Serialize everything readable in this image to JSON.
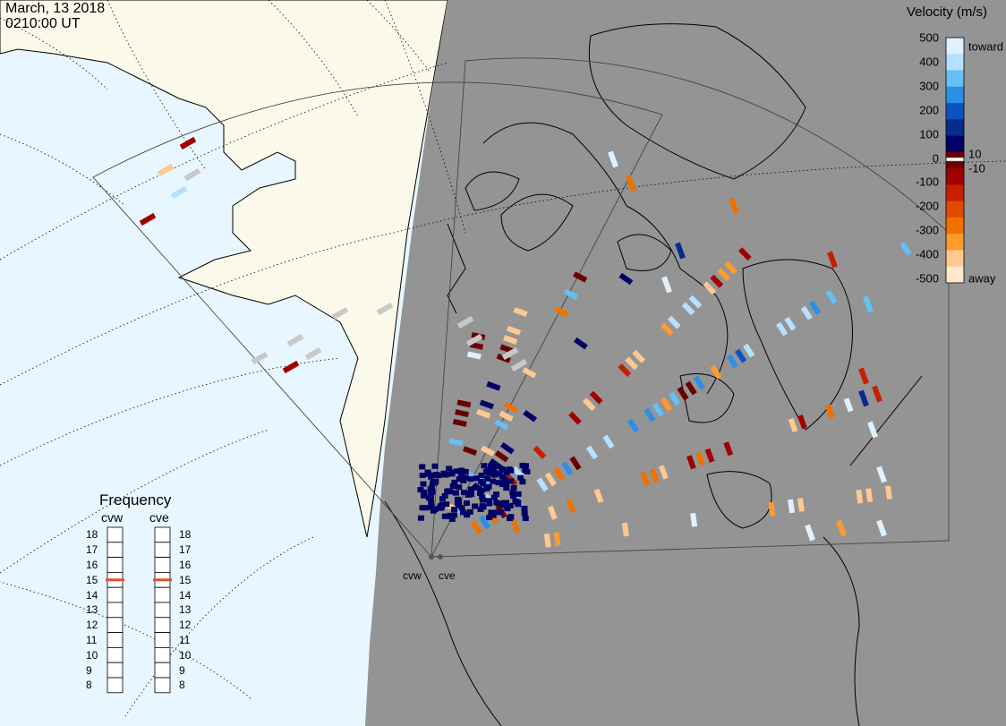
{
  "header": {
    "date": "March, 13 2018",
    "time": "0210:00 UT"
  },
  "velocity_scale": {
    "title": "Velocity (m/s)",
    "ticks": [
      "500",
      "400",
      "300",
      "200",
      "100",
      "0",
      "-100",
      "-200",
      "-300",
      "-400",
      "-500"
    ],
    "toward_label": "toward",
    "away_label": "away",
    "inner_pos": "10",
    "inner_neg": "-10",
    "colors": [
      "#dff1ff",
      "#b6e0ff",
      "#66bff5",
      "#2b8fe6",
      "#0b54c0",
      "#062c8c",
      "#000066",
      "#6a0000",
      "#a00000",
      "#c81e00",
      "#e04b00",
      "#f07000",
      "#ff9a30",
      "#ffc890",
      "#ffe6cc"
    ]
  },
  "frequency": {
    "title": "Frequency",
    "radars": [
      {
        "name": "cvw",
        "freq_mhz": 15
      },
      {
        "name": "cve",
        "freq_mhz": 15
      }
    ],
    "scale": [
      "18",
      "17",
      "16",
      "15",
      "14",
      "13",
      "12",
      "11",
      "10",
      "9",
      "8"
    ],
    "marker_color": "#e0502a"
  },
  "sites": [
    "cvw",
    "cve"
  ],
  "map_colors": {
    "ocean_day": "#e8f6ff",
    "land_day": "#fbfaea",
    "night": "#949494",
    "ground_scatter": "#c8c8c8"
  }
}
